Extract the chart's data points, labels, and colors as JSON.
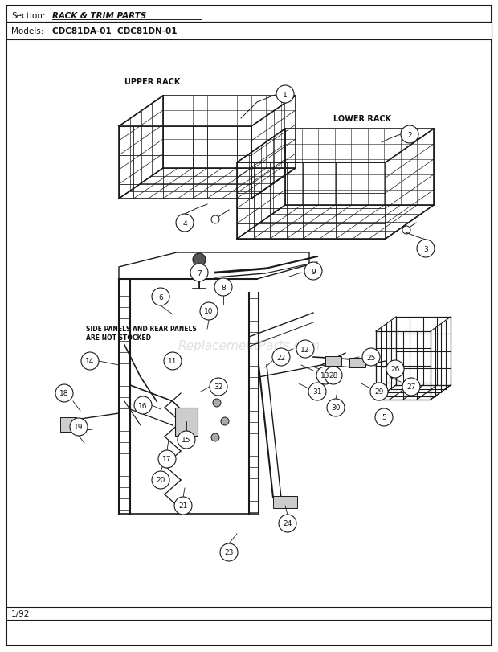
{
  "title_section": "Section:",
  "title_section_bold": "RACK & TRIM PARTS",
  "title_models": "Models:",
  "title_models_bold": "CDC81DA-01  CDC81DN-01",
  "footer": "1/92",
  "bg_color": "#ffffff",
  "border_color": "#111111",
  "watermark": "ReplacementParts.com",
  "upper_rack_label": "UPPER RACK",
  "lower_rack_label": "LOWER RACK",
  "side_panel_label": "SIDE PANELS AND REAR PANELS\nARE NOT STOCKED",
  "figsize": [
    6.2,
    8.12
  ],
  "dpi": 100
}
